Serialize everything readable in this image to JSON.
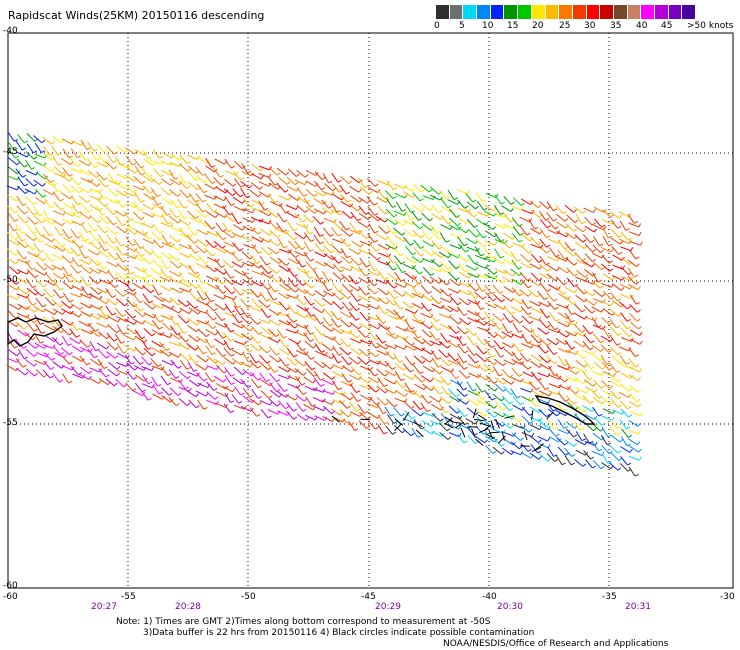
{
  "title": "Rapidscat Winds(25KM) 20150116 descending",
  "legend": {
    "colors": [
      "#303030",
      "#6e6e6e",
      "#00d8f8",
      "#0088f8",
      "#0024f8",
      "#009400",
      "#00c800",
      "#ffe800",
      "#ffb800",
      "#ff7800",
      "#f03a00",
      "#ff0000",
      "#c80000",
      "#784628",
      "#c88060",
      "#ff00ff",
      "#b400d8",
      "#7800c8",
      "#4800a0"
    ],
    "labels": [
      "0",
      "5",
      "10",
      "15",
      "20",
      "25",
      "30",
      "35",
      "40",
      "45",
      ">50 knots"
    ]
  },
  "map": {
    "lon_range": [
      -60,
      -30
    ],
    "lat_range": [
      -60,
      -40
    ],
    "lat_labels": [
      "-40",
      "-45",
      "-50",
      "-55",
      "-60"
    ],
    "lon_labels": [
      "-60",
      "-55",
      "-50",
      "-45",
      "-40",
      "-35",
      "-30"
    ],
    "grid": "dotted",
    "coastline_color": "#000000"
  },
  "times": [
    "20:27",
    "20:28",
    "20:29",
    "20:30",
    "20:31"
  ],
  "notes": [
    "Note: 1) Times are GMT 2)Times along bottom correspond to measurement at -50S",
    "3)Data buffer is 22 hrs from 20150116 4) Black circles indicate possible contamination",
    "NOAA/NESDIS/Office of Research and Applications"
  ]
}
